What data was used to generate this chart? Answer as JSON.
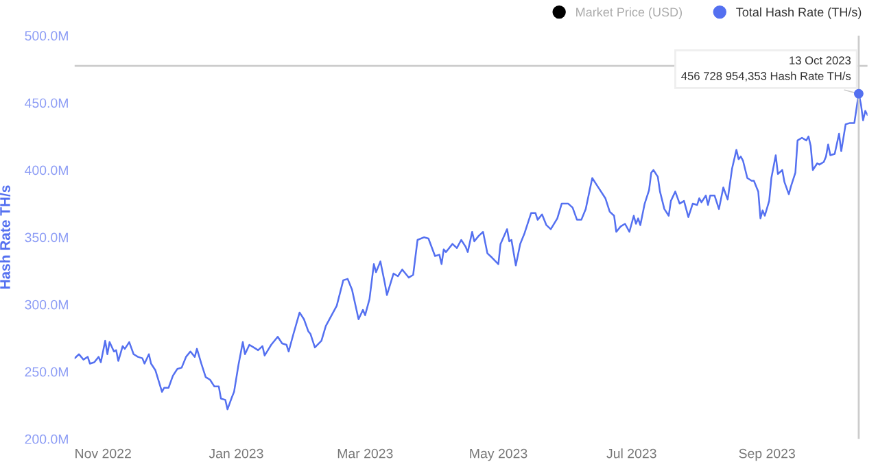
{
  "chart_data": {
    "type": "line",
    "ylabel": "Hash Rate TH/s",
    "x": [
      "2022-10-19",
      "2022-10-21",
      "2022-10-22",
      "2022-10-23",
      "2022-10-25",
      "2022-10-26",
      "2022-10-28",
      "2022-10-30",
      "2022-10-31",
      "2022-11-02",
      "2022-11-03",
      "2022-11-04",
      "2022-11-06",
      "2022-11-07",
      "2022-11-08",
      "2022-11-10",
      "2022-11-11",
      "2022-11-13",
      "2022-11-15",
      "2022-11-17",
      "2022-11-19",
      "2022-11-20",
      "2022-11-22",
      "2022-11-23",
      "2022-11-25",
      "2022-11-28",
      "2022-11-29",
      "2022-12-01",
      "2022-12-03",
      "2022-12-05",
      "2022-12-07",
      "2022-12-09",
      "2022-12-11",
      "2022-12-13",
      "2022-12-14",
      "2022-12-16",
      "2022-12-18",
      "2022-12-20",
      "2022-12-22",
      "2022-12-24",
      "2022-12-25",
      "2022-12-27",
      "2022-12-28",
      "2022-12-30",
      "2022-12-31",
      "2023-01-02",
      "2023-01-04",
      "2023-01-05",
      "2023-01-07",
      "2023-01-09",
      "2023-01-11",
      "2023-01-13",
      "2023-01-14",
      "2023-01-17",
      "2023-01-20",
      "2023-01-22",
      "2023-01-24",
      "2023-01-25",
      "2023-01-27",
      "2023-01-30",
      "2023-02-01",
      "2023-02-03",
      "2023-02-04",
      "2023-02-06",
      "2023-02-09",
      "2023-02-11",
      "2023-02-14",
      "2023-02-16",
      "2023-02-19",
      "2023-02-21",
      "2023-02-23",
      "2023-02-26",
      "2023-02-28",
      "2023-03-01",
      "2023-03-03",
      "2023-03-05",
      "2023-03-06",
      "2023-03-08",
      "2023-03-10",
      "2023-03-11",
      "2023-03-14",
      "2023-03-16",
      "2023-03-18",
      "2023-03-21",
      "2023-03-23",
      "2023-03-25",
      "2023-03-28",
      "2023-03-30",
      "2023-04-02",
      "2023-04-04",
      "2023-04-05",
      "2023-04-06",
      "2023-04-07",
      "2023-04-10",
      "2023-04-12",
      "2023-04-14",
      "2023-04-16",
      "2023-04-17",
      "2023-04-19",
      "2023-04-20",
      "2023-04-22",
      "2023-04-24",
      "2023-04-26",
      "2023-04-28",
      "2023-05-01",
      "2023-05-02",
      "2023-05-05",
      "2023-05-06",
      "2023-05-07",
      "2023-05-09",
      "2023-05-11",
      "2023-05-13",
      "2023-05-16",
      "2023-05-18",
      "2023-05-19",
      "2023-05-21",
      "2023-05-23",
      "2023-05-25",
      "2023-05-28",
      "2023-05-30",
      "2023-06-02",
      "2023-06-04",
      "2023-06-06",
      "2023-06-08",
      "2023-06-10",
      "2023-06-13",
      "2023-06-15",
      "2023-06-19",
      "2023-06-21",
      "2023-06-23",
      "2023-06-24",
      "2023-06-26",
      "2023-06-28",
      "2023-06-30",
      "2023-07-02",
      "2023-07-03",
      "2023-07-04",
      "2023-07-05",
      "2023-07-07",
      "2023-07-09",
      "2023-07-10",
      "2023-07-11",
      "2023-07-13",
      "2023-07-14",
      "2023-07-16",
      "2023-07-18",
      "2023-07-19",
      "2023-07-21",
      "2023-07-23",
      "2023-07-25",
      "2023-07-27",
      "2023-07-29",
      "2023-07-31",
      "2023-08-01",
      "2023-08-02",
      "2023-08-04",
      "2023-08-05",
      "2023-08-06",
      "2023-08-08",
      "2023-08-10",
      "2023-08-12",
      "2023-08-14",
      "2023-08-16",
      "2023-08-18",
      "2023-08-19",
      "2023-08-20",
      "2023-08-21",
      "2023-08-23",
      "2023-08-25",
      "2023-08-26",
      "2023-08-28",
      "2023-08-29",
      "2023-08-30",
      "2023-08-31",
      "2023-09-02",
      "2023-09-03",
      "2023-09-05",
      "2023-09-06",
      "2023-09-08",
      "2023-09-09",
      "2023-09-11",
      "2023-09-12",
      "2023-09-14",
      "2023-09-15",
      "2023-09-17",
      "2023-09-19",
      "2023-09-20",
      "2023-09-21",
      "2023-09-22",
      "2023-09-24",
      "2023-09-25",
      "2023-09-27",
      "2023-09-28",
      "2023-09-29",
      "2023-09-30",
      "2023-10-02",
      "2023-10-04",
      "2023-10-05",
      "2023-10-07",
      "2023-10-09",
      "2023-10-11",
      "2023-10-13",
      "2023-10-14",
      "2023-10-15",
      "2023-10-16",
      "2023-10-17"
    ],
    "series": [
      {
        "name": "Market Price (USD)",
        "color": "#000000",
        "values": [
          null,
          null,
          null,
          null,
          null,
          null,
          null,
          null,
          null,
          null,
          null,
          null,
          null,
          null,
          null,
          null,
          null,
          null,
          null,
          null,
          null,
          null,
          null,
          null,
          null,
          null,
          null,
          null,
          null,
          null,
          null,
          null,
          null,
          null,
          null,
          null,
          null,
          null,
          null,
          null,
          null,
          null,
          null,
          null,
          null,
          null,
          null,
          null,
          null,
          null,
          null,
          null,
          null,
          null,
          null,
          null,
          null,
          null,
          null,
          null,
          null,
          null,
          null,
          null,
          null,
          null,
          null,
          null,
          null,
          null,
          null,
          null,
          null,
          null,
          null,
          null,
          null,
          null,
          null,
          null,
          null,
          null,
          null,
          null,
          null,
          null,
          null,
          null,
          null,
          null,
          null,
          null,
          null,
          null,
          null,
          null,
          null,
          null,
          null,
          null,
          null,
          null,
          null,
          null,
          null,
          null,
          null,
          null,
          null,
          null,
          null,
          null,
          null,
          null,
          null,
          null,
          null,
          null,
          null,
          null,
          null,
          null,
          null,
          null,
          null,
          null,
          null,
          null,
          null,
          null,
          null,
          null,
          null,
          null,
          null,
          null,
          null,
          null,
          null,
          null,
          null,
          null,
          null,
          null,
          null,
          null,
          null,
          null,
          null,
          null,
          null,
          null,
          null,
          null,
          null,
          null,
          null,
          null,
          null,
          null,
          null,
          null,
          null,
          null,
          null,
          null,
          null,
          null,
          null,
          null,
          null,
          null,
          null,
          null,
          null,
          null,
          null,
          null,
          null,
          null,
          null,
          null,
          null,
          null,
          null,
          null,
          null,
          null,
          null,
          null,
          null,
          null,
          null,
          null,
          null,
          null,
          null,
          null,
          null,
          null,
          null,
          null,
          null,
          null,
          null,
          null
        ]
      },
      {
        "name": "Total Hash Rate (TH/s)",
        "color": "#5470f0",
        "values": [
          260,
          263,
          261,
          259,
          261,
          256,
          257,
          261,
          257,
          273,
          263,
          272,
          265,
          266,
          258,
          269,
          267,
          272,
          263,
          261,
          260,
          256,
          263,
          256,
          251,
          235,
          238,
          238,
          247,
          252,
          253,
          261,
          265,
          261,
          267,
          256,
          246,
          244,
          239,
          239,
          230,
          229,
          222,
          231,
          235,
          255,
          272,
          263,
          270,
          268,
          266,
          269,
          262,
          270,
          276,
          271,
          270,
          265,
          277,
          294,
          289,
          280,
          278,
          268,
          273,
          284,
          293,
          299,
          318,
          319,
          311,
          289,
          296,
          292,
          304,
          330,
          324,
          332,
          316,
          307,
          323,
          321,
          326,
          320,
          322,
          348,
          350,
          349,
          336,
          337,
          330,
          341,
          339,
          345,
          342,
          348,
          343,
          339,
          354,
          347,
          351,
          354,
          338,
          335,
          330,
          345,
          356,
          347,
          348,
          329,
          345,
          353,
          368,
          368,
          363,
          367,
          359,
          356,
          364,
          375,
          375,
          372,
          363,
          363,
          371,
          394,
          389,
          379,
          369,
          366,
          354,
          358,
          360,
          354,
          366,
          360,
          364,
          359,
          375,
          385,
          398,
          400,
          395,
          384,
          371,
          366,
          377,
          384,
          375,
          377,
          365,
          375,
          374,
          379,
          376,
          381,
          374,
          381,
          381,
          371,
          387,
          378,
          401,
          415,
          408,
          410,
          407,
          394,
          392,
          392,
          384,
          364,
          370,
          366,
          377,
          394,
          411,
          397,
          400,
          391,
          382,
          388,
          398,
          422,
          424,
          422,
          425,
          418,
          400,
          405,
          404,
          406,
          410,
          419,
          411,
          412,
          427,
          414,
          434,
          435,
          435,
          457,
          449,
          437,
          444,
          441
        ]
      }
    ],
    "xlim": [
      "2022-10-19",
      "2023-10-17"
    ],
    "xticks": [
      {
        "value": "2022-11-01",
        "label": "Nov 2022"
      },
      {
        "value": "2023-01-01",
        "label": "Jan 2023"
      },
      {
        "value": "2023-03-01",
        "label": "Mar 2023"
      },
      {
        "value": "2023-05-01",
        "label": "May 2023"
      },
      {
        "value": "2023-07-01",
        "label": "Jul 2023"
      },
      {
        "value": "2023-09-01",
        "label": "Sep 2023"
      }
    ],
    "ylim": [
      200,
      500
    ],
    "yticks": [
      {
        "value": 200,
        "label": "200.0M"
      },
      {
        "value": 250,
        "label": "250.0M"
      },
      {
        "value": 300,
        "label": "300.0M"
      },
      {
        "value": 350,
        "label": "350.0M"
      },
      {
        "value": 400,
        "label": "400.0M"
      },
      {
        "value": 450,
        "label": "450.0M"
      },
      {
        "value": 500,
        "label": "500.0M"
      }
    ],
    "ref_lines": [
      {
        "axis": "x",
        "value": "2023-10-13",
        "color": "#cccccc"
      },
      {
        "axis": "y",
        "value": 477.5,
        "color": "#cccccc"
      }
    ],
    "annotations": [
      {
        "text": "13 Oct 2023\n456 728 954,353 Hash Rate TH/s",
        "x": "2023-10-13",
        "y": 456.73
      }
    ],
    "grid": false,
    "legend": "top right",
    "marker": "none",
    "line_style": "solid"
  }
}
